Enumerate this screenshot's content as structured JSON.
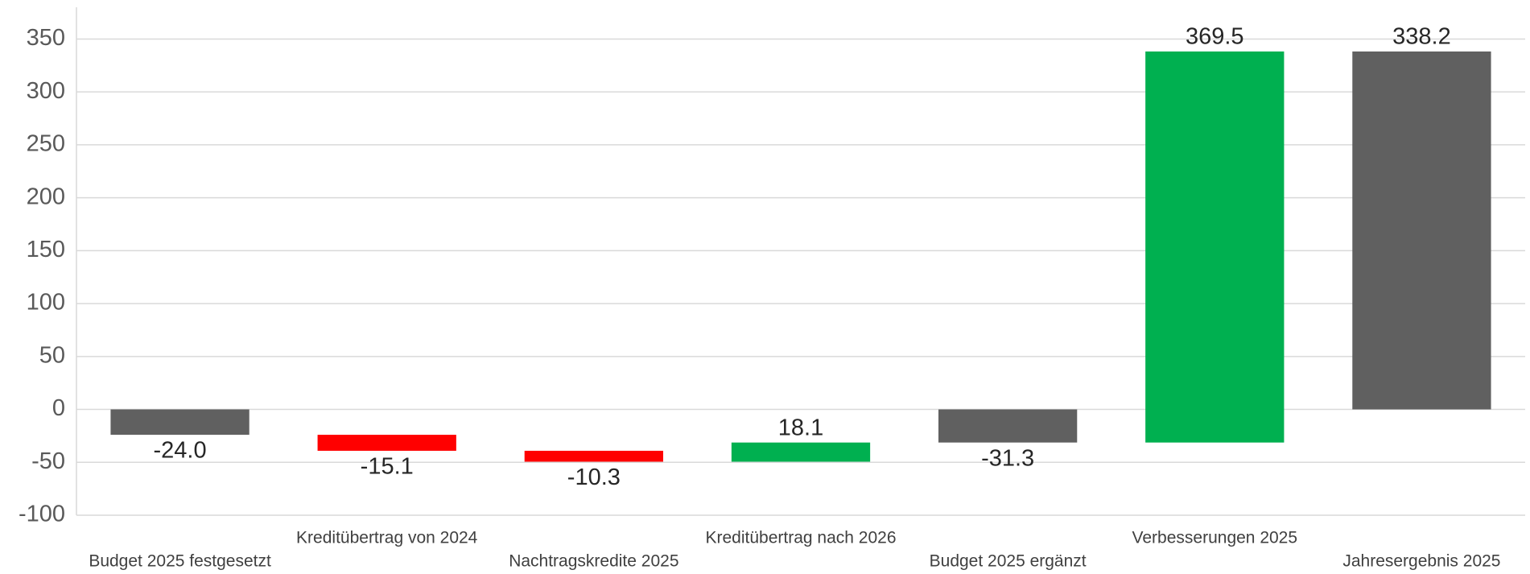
{
  "chart_data": {
    "type": "waterfall",
    "categories": [
      "Budget 2025 festgesetzt",
      "Kreditübertrag von 2024",
      "Nachtragskredite 2025",
      "Kreditübertrag nach 2026",
      "Budget 2025 ergänzt",
      "Verbesserungen 2025",
      "Jahresergebnis 2025"
    ],
    "values": [
      -24.0,
      -15.1,
      -10.3,
      18.1,
      -31.3,
      369.5,
      338.2
    ],
    "value_labels": [
      "-24.0",
      "-15.1",
      "-10.3",
      "18.1",
      "-31.3",
      "369.5",
      "338.2"
    ],
    "totals": [
      true,
      false,
      false,
      false,
      true,
      false,
      true
    ],
    "colors": [
      "#606060",
      "#ff0000",
      "#ff0000",
      "#00b050",
      "#606060",
      "#00b050",
      "#606060"
    ],
    "ylim": [
      -100,
      380
    ],
    "yticks": [
      -100,
      -50,
      0,
      50,
      100,
      150,
      200,
      250,
      300,
      350
    ],
    "grid": true
  }
}
